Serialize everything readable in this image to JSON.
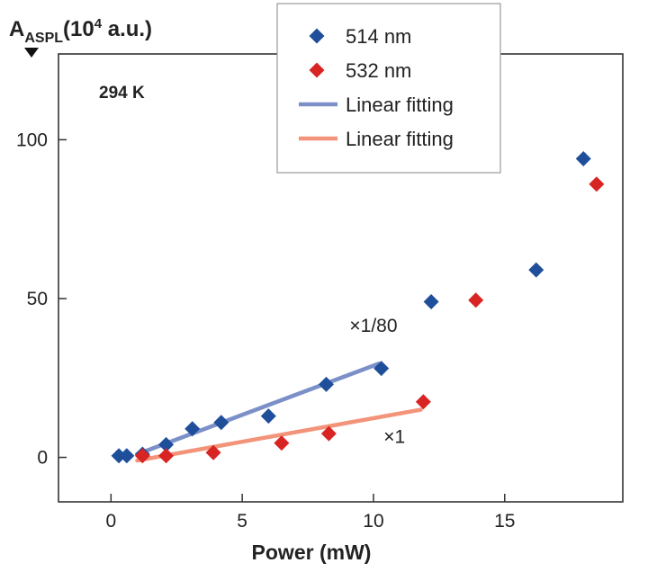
{
  "chart_data": {
    "type": "scatter",
    "ylabel_main": "A",
    "ylabel_sub": "ASPL",
    "ylabel_paren_open": "(10",
    "ylabel_exp": "4",
    "ylabel_unit": " a.u.)",
    "xlabel": "Power (mW)",
    "annotation": "294 K",
    "xlim": [
      -2,
      19.5
    ],
    "ylim": [
      -14,
      127
    ],
    "x_ticks": [
      0,
      5,
      10,
      15
    ],
    "x_tick_labels": [
      "0",
      "5",
      "10",
      "15"
    ],
    "y_ticks": [
      0,
      50,
      100
    ],
    "y_tick_labels": [
      "0",
      "50",
      "100"
    ],
    "series": [
      {
        "name": "514 nm",
        "color": "#1f4f9a",
        "marker": "diamond",
        "points": [
          [
            0.3,
            0.5
          ],
          [
            0.6,
            0.5
          ],
          [
            1.2,
            1
          ],
          [
            2.1,
            4
          ],
          [
            3.1,
            9
          ],
          [
            4.2,
            11
          ],
          [
            6.0,
            13
          ],
          [
            8.2,
            23
          ],
          [
            10.3,
            28
          ],
          [
            12.2,
            49
          ],
          [
            16.2,
            59
          ],
          [
            18.0,
            94
          ]
        ]
      },
      {
        "name": "532 nm",
        "color": "#d92424",
        "marker": "diamond",
        "points": [
          [
            1.2,
            0.5
          ],
          [
            2.1,
            0.5
          ],
          [
            3.9,
            1.5
          ],
          [
            6.5,
            4.5
          ],
          [
            8.3,
            7.5
          ],
          [
            11.9,
            17.5
          ],
          [
            13.9,
            49.5
          ],
          [
            18.5,
            86
          ]
        ]
      }
    ],
    "fits": [
      {
        "name": "Linear fitting",
        "color": "#7b8fc8",
        "x": [
          1.0,
          10.2
        ],
        "y": [
          1.0,
          29.5
        ]
      },
      {
        "name": "Linear fitting",
        "color": "#f2937a",
        "x": [
          1.0,
          11.8
        ],
        "y": [
          -1.0,
          15.0
        ]
      }
    ],
    "labels": [
      {
        "text": "×1/80",
        "x": 10.0,
        "y": 39.5
      },
      {
        "text": "×1",
        "x": 10.8,
        "y": 4.5
      }
    ],
    "legend": {
      "placement": "top-center",
      "entries": [
        {
          "kind": "diamond",
          "label": "514 nm",
          "color": "#1f4f9a"
        },
        {
          "kind": "diamond",
          "label": "532 nm",
          "color": "#d92424"
        },
        {
          "kind": "line",
          "label": "Linear fitting",
          "color": "#7b8fc8"
        },
        {
          "kind": "line",
          "label": "Linear fitting",
          "color": "#f2937a"
        }
      ]
    }
  }
}
